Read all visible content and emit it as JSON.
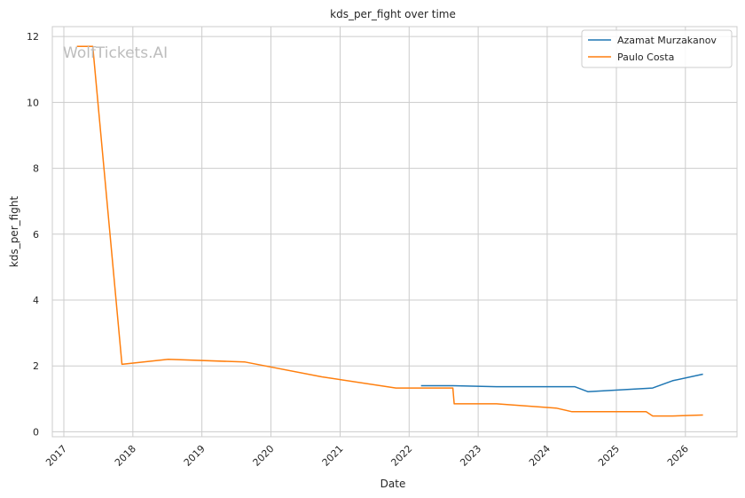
{
  "watermark": "WolfTickets.AI",
  "chart_data": {
    "type": "line",
    "title": "kds_per_fight over time",
    "xlabel": "Date",
    "ylabel": "kds_per_fight",
    "xlim": [
      "2016-11-01",
      "2026-10-01"
    ],
    "ylim": [
      -0.15,
      12.3
    ],
    "x_ticks": [
      "2017-01-01",
      "2018-01-01",
      "2019-01-01",
      "2020-01-01",
      "2021-01-01",
      "2022-01-01",
      "2023-01-01",
      "2024-01-01",
      "2025-01-01",
      "2026-01-01"
    ],
    "x_tick_labels": [
      "2017",
      "2018",
      "2019",
      "2020",
      "2021",
      "2022",
      "2023",
      "2024",
      "2025",
      "2026"
    ],
    "y_ticks": [
      0,
      2,
      4,
      6,
      8,
      10,
      12
    ],
    "y_tick_labels": [
      "0",
      "2",
      "4",
      "6",
      "8",
      "10",
      "12"
    ],
    "grid": true,
    "legend_position": "top-right",
    "series": [
      {
        "name": "Azamat Murzakanov",
        "color": "#1f77b4",
        "points": [
          [
            "2022-03-05",
            1.4
          ],
          [
            "2022-08-20",
            1.4
          ],
          [
            "2023-04-08",
            1.37
          ],
          [
            "2024-05-25",
            1.37
          ],
          [
            "2024-08-03",
            1.22
          ],
          [
            "2025-07-12",
            1.33
          ],
          [
            "2025-10-25",
            1.55
          ],
          [
            "2026-04-04",
            1.75
          ]
        ]
      },
      {
        "name": "Paulo Costa",
        "color": "#ff7f0e",
        "points": [
          [
            "2017-03-11",
            11.7
          ],
          [
            "2017-06-03",
            11.7
          ],
          [
            "2017-11-04",
            2.05
          ],
          [
            "2018-07-07",
            2.2
          ],
          [
            "2019-08-17",
            2.12
          ],
          [
            "2020-09-26",
            1.67
          ],
          [
            "2021-10-23",
            1.33
          ],
          [
            "2022-08-20",
            1.33
          ],
          [
            "2022-08-27",
            0.85
          ],
          [
            "2023-04-08",
            0.85
          ],
          [
            "2024-02-17",
            0.72
          ],
          [
            "2024-05-11",
            0.61
          ],
          [
            "2025-06-07",
            0.61
          ],
          [
            "2025-07-12",
            0.48
          ],
          [
            "2025-10-25",
            0.48
          ],
          [
            "2026-04-04",
            0.51
          ]
        ]
      }
    ]
  }
}
